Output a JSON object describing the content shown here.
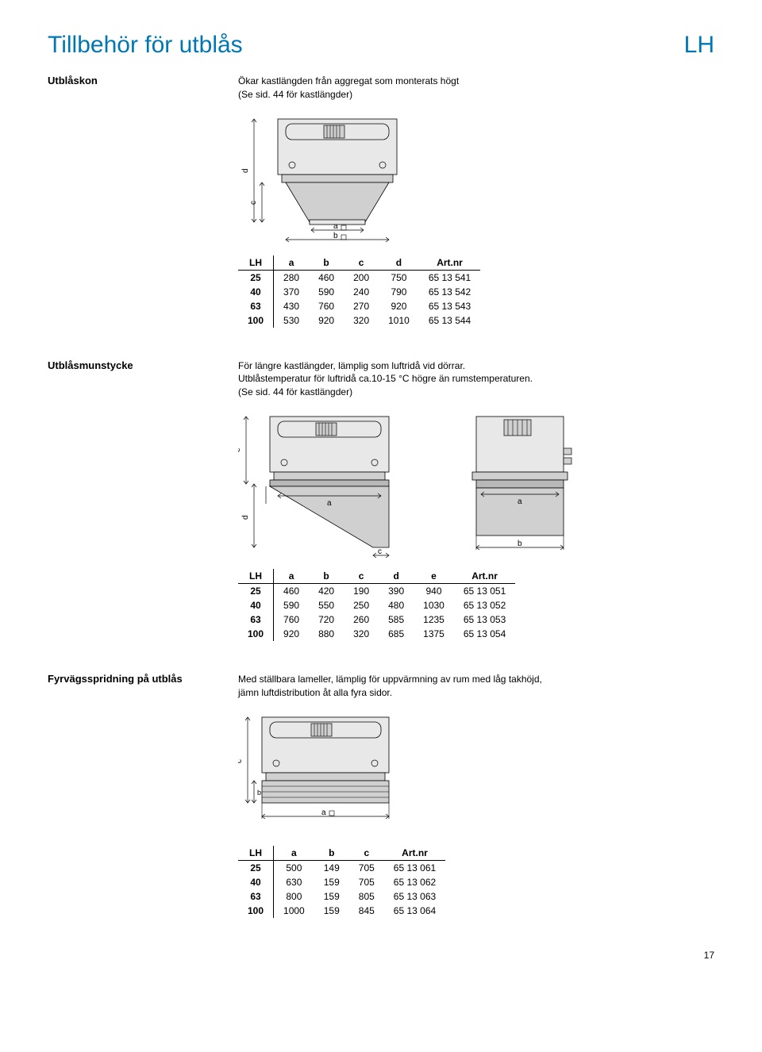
{
  "page": {
    "title": "Tillbehör för utblås",
    "tag": "LH",
    "number": "17"
  },
  "section1": {
    "label": "Utblåskon",
    "desc1": "Ökar kastlängden från aggregat som monterats högt",
    "desc2": "(Se sid. 44 för kastlängder)",
    "table": {
      "headers": [
        "LH",
        "a",
        "b",
        "c",
        "d",
        "Art.nr"
      ],
      "rows": [
        [
          "25",
          "280",
          "460",
          "200",
          "750",
          "65 13 541"
        ],
        [
          "40",
          "370",
          "590",
          "240",
          "790",
          "65 13 542"
        ],
        [
          "63",
          "430",
          "760",
          "270",
          "920",
          "65 13 543"
        ],
        [
          "100",
          "530",
          "920",
          "320",
          "1010",
          "65 13 544"
        ]
      ]
    }
  },
  "section2": {
    "label": "Utblåsmunstycke",
    "desc1": "För längre kastlängder, lämplig som luftridå vid dörrar.",
    "desc2": "Utblåstemperatur för luftridå ca.10-15 °C högre än rumstemperaturen.",
    "desc3": "(Se sid. 44 för kastlängder)",
    "table": {
      "headers": [
        "LH",
        "a",
        "b",
        "c",
        "d",
        "e",
        "Art.nr"
      ],
      "rows": [
        [
          "25",
          "460",
          "420",
          "190",
          "390",
          "940",
          "65 13 051"
        ],
        [
          "40",
          "590",
          "550",
          "250",
          "480",
          "1030",
          "65 13 052"
        ],
        [
          "63",
          "760",
          "720",
          "260",
          "585",
          "1235",
          "65 13 053"
        ],
        [
          "100",
          "920",
          "880",
          "320",
          "685",
          "1375",
          "65 13 054"
        ]
      ]
    }
  },
  "section3": {
    "label": "Fyrvägsspridning på utblås",
    "desc1": "Med ställbara lameller, lämplig för uppvärmning av rum med låg takhöjd,",
    "desc2": "jämn luftdistribution åt alla fyra sidor.",
    "table": {
      "headers": [
        "LH",
        "a",
        "b",
        "c",
        "Art.nr"
      ],
      "rows": [
        [
          "25",
          "500",
          "149",
          "705",
          "65 13 061"
        ],
        [
          "40",
          "630",
          "159",
          "705",
          "65 13 062"
        ],
        [
          "63",
          "800",
          "159",
          "805",
          "65 13 063"
        ],
        [
          "100",
          "1000",
          "159",
          "845",
          "65 13 064"
        ]
      ]
    }
  },
  "colors": {
    "heading": "#0077b3",
    "line": "#000000",
    "fill_light": "#e8e8e8",
    "fill_mid": "#d0d0d0",
    "fill_dark": "#b8b8b8"
  }
}
